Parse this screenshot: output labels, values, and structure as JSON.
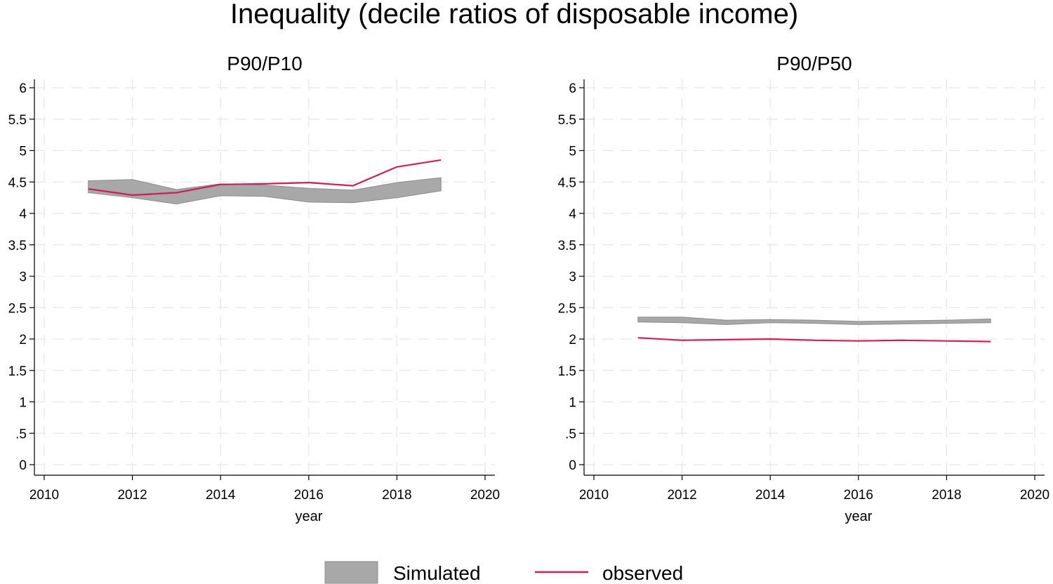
{
  "title": "Inequality (decile ratios of disposable income)",
  "colors": {
    "simulated_fill": "#a8a8a8",
    "simulated_edge": "#8c8c8c",
    "observed": "#cc1f55"
  },
  "chart_data": [
    {
      "type": "area",
      "title": "P90/P10",
      "xlabel": "year",
      "ylabel": "",
      "xlim": [
        2010,
        2020
      ],
      "ylim": [
        0,
        6
      ],
      "xticks": [
        2010,
        2012,
        2014,
        2016,
        2018,
        2020
      ],
      "yticks": [
        0,
        0.5,
        1,
        1.5,
        2,
        2.5,
        3,
        3.5,
        4,
        4.5,
        5,
        5.5,
        6
      ],
      "ytick_labels": [
        "0",
        ".5",
        "1",
        "1.5",
        "2",
        "2.5",
        "3",
        "3.5",
        "4",
        "4.5",
        "5",
        "5.5",
        "6"
      ],
      "grid": true,
      "x": [
        2011,
        2012,
        2013,
        2014,
        2015,
        2016,
        2017,
        2018,
        2019
      ],
      "series": [
        {
          "name": "Simulated",
          "kind": "band",
          "lower": [
            4.33,
            4.25,
            4.15,
            4.28,
            4.27,
            4.18,
            4.17,
            4.25,
            4.36
          ],
          "upper": [
            4.52,
            4.54,
            4.38,
            4.47,
            4.45,
            4.4,
            4.37,
            4.49,
            4.57
          ]
        },
        {
          "name": "observed",
          "kind": "line",
          "values": [
            4.39,
            4.29,
            4.33,
            4.46,
            4.47,
            4.49,
            4.44,
            4.74,
            4.85
          ]
        }
      ]
    },
    {
      "type": "area",
      "title": "P90/P50",
      "xlabel": "year",
      "ylabel": "",
      "xlim": [
        2010,
        2020
      ],
      "ylim": [
        0,
        6
      ],
      "xticks": [
        2010,
        2012,
        2014,
        2016,
        2018,
        2020
      ],
      "yticks": [
        0,
        0.5,
        1,
        1.5,
        2,
        2.5,
        3,
        3.5,
        4,
        4.5,
        5,
        5.5,
        6
      ],
      "ytick_labels": [
        "0",
        ".5",
        "1",
        "1.5",
        "2",
        "2.5",
        "3",
        "3.5",
        "4",
        "4.5",
        "5",
        "5.5",
        "6"
      ],
      "grid": true,
      "x": [
        2011,
        2012,
        2013,
        2014,
        2015,
        2016,
        2017,
        2018,
        2019
      ],
      "series": [
        {
          "name": "Simulated",
          "kind": "band",
          "lower": [
            2.27,
            2.26,
            2.23,
            2.26,
            2.25,
            2.23,
            2.24,
            2.25,
            2.26
          ],
          "upper": [
            2.35,
            2.35,
            2.3,
            2.31,
            2.3,
            2.28,
            2.29,
            2.3,
            2.32
          ]
        },
        {
          "name": "observed",
          "kind": "line",
          "values": [
            2.02,
            1.98,
            1.99,
            2.0,
            1.98,
            1.97,
            1.98,
            1.97,
            1.96
          ]
        }
      ]
    }
  ],
  "legend": {
    "position": "bottom",
    "items": [
      {
        "label": "Simulated",
        "kind": "band"
      },
      {
        "label": "observed",
        "kind": "line"
      }
    ]
  }
}
